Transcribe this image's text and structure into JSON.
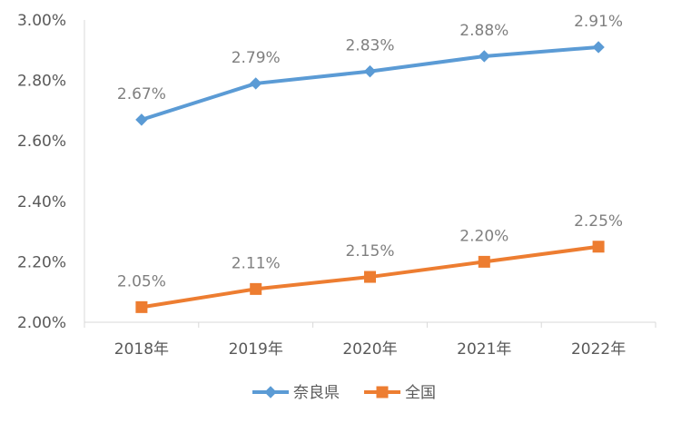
{
  "chart_data": {
    "type": "line",
    "categories": [
      "2018年",
      "2019年",
      "2020年",
      "2021年",
      "2022年"
    ],
    "series": [
      {
        "name": "奈良県",
        "values": [
          2.67,
          2.79,
          2.83,
          2.88,
          2.91
        ],
        "labels": [
          "2.67%",
          "2.79%",
          "2.83%",
          "2.88%",
          "2.91%"
        ],
        "color": "#5b9bd5",
        "marker": "diamond"
      },
      {
        "name": "全国",
        "values": [
          2.05,
          2.11,
          2.15,
          2.2,
          2.25
        ],
        "labels": [
          "2.05%",
          "2.11%",
          "2.15%",
          "2.20%",
          "2.25%"
        ],
        "color": "#ed7d31",
        "marker": "square"
      }
    ],
    "y_ticks": [
      "2.00%",
      "2.20%",
      "2.40%",
      "2.60%",
      "2.80%",
      "3.00%"
    ],
    "ylim": [
      2.0,
      3.0
    ],
    "grid": false,
    "legend_position": "bottom"
  }
}
